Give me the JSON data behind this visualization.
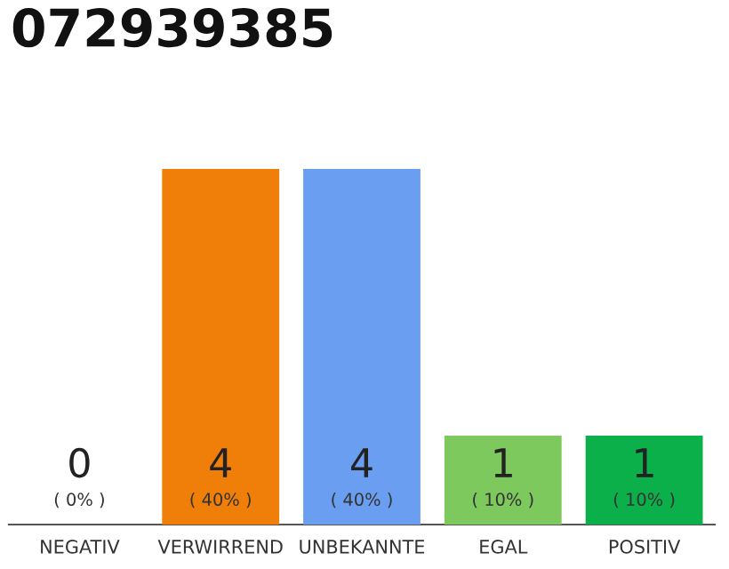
{
  "chart_data": {
    "type": "bar",
    "title": "072939385",
    "categories": [
      "NEGATIV",
      "VERWIRREND",
      "UNBEKANNTE",
      "EGAL",
      "POSITIV"
    ],
    "values": [
      0,
      4,
      4,
      1,
      1
    ],
    "colors": [
      "#999999",
      "#f07f0a",
      "#6a9ef0",
      "#7dc95e",
      "#0cb04a"
    ],
    "value_labels": [
      "0\n( 0% )",
      "4\n( 40% )",
      "4\n( 40% )",
      "1\n( 10% )",
      "1\n( 10% )"
    ],
    "grid": false,
    "legend": false
  }
}
